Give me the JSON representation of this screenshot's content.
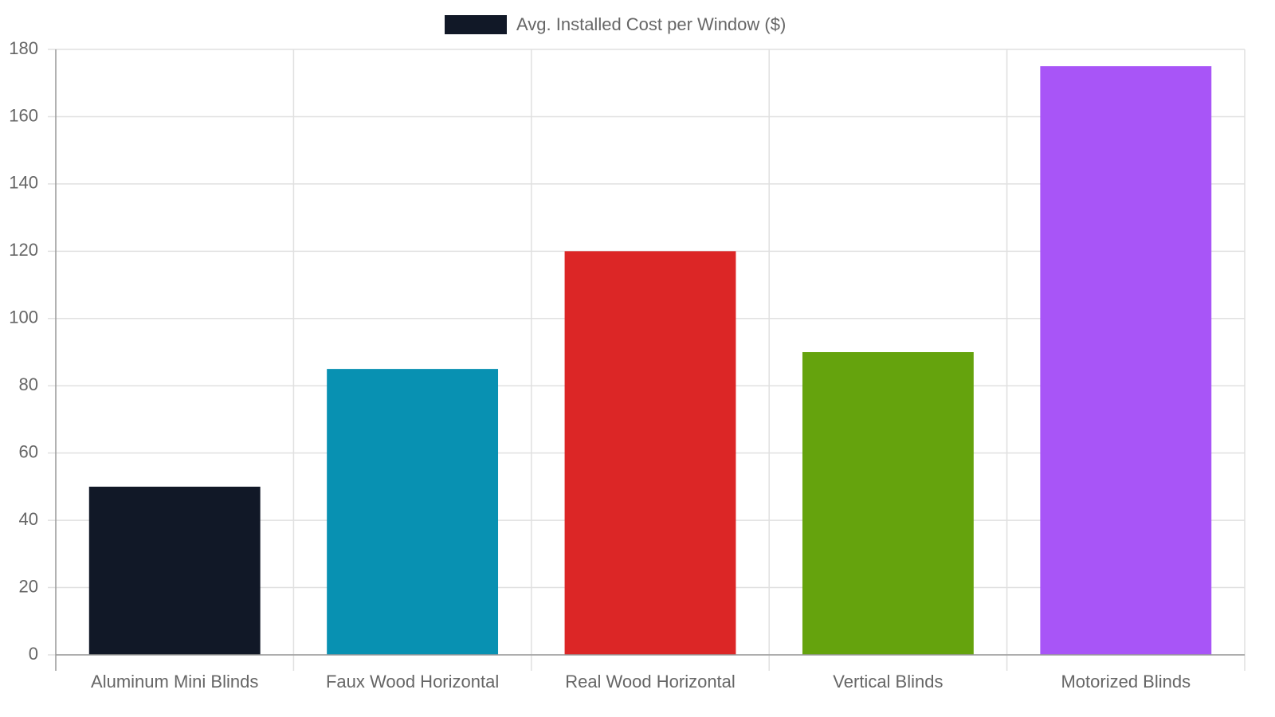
{
  "chart_data": {
    "type": "bar",
    "categories": [
      "Aluminum Mini Blinds",
      "Faux Wood Horizontal",
      "Real Wood Horizontal",
      "Vertical Blinds",
      "Motorized Blinds"
    ],
    "series": [
      {
        "name": "Avg. Installed Cost per Window ($)",
        "colors": [
          "#111827",
          "#0891b2",
          "#dc2626",
          "#65a30d",
          "#a855f7"
        ],
        "values": [
          50,
          85,
          120,
          90,
          175
        ]
      }
    ],
    "ylim": [
      0,
      180
    ],
    "yticks": [
      0,
      20,
      40,
      60,
      80,
      100,
      120,
      140,
      160,
      180
    ],
    "grid": true,
    "legend": "top"
  }
}
